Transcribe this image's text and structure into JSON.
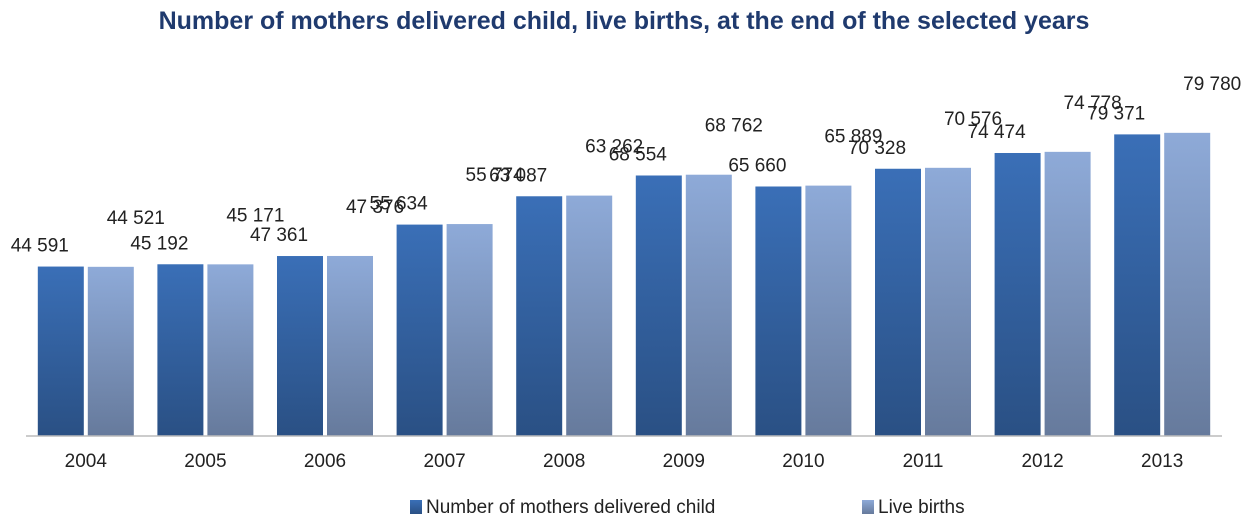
{
  "chart_data": {
    "type": "bar",
    "title": "Number of mothers delivered child, live births, at the end of the selected years",
    "categories": [
      "2004",
      "2005",
      "2006",
      "2007",
      "2008",
      "2009",
      "2010",
      "2011",
      "2012",
      "2013"
    ],
    "series": [
      {
        "name": "Number of mothers delivered child",
        "color": "#3a6fb7",
        "values": [
          44591,
          45192,
          47361,
          55634,
          63087,
          68554,
          65660,
          70328,
          74474,
          79371
        ],
        "value_labels": [
          "44 591",
          "45 192",
          "47 361",
          "55 634",
          "63 087",
          "68 554",
          "65 660",
          "70 328",
          "74 474",
          "79 371"
        ]
      },
      {
        "name": "Live births",
        "color": "#8eaad8",
        "values": [
          44521,
          45171,
          47376,
          55774,
          63262,
          68762,
          65889,
          70576,
          74778,
          79780
        ],
        "value_labels": [
          "44 521",
          "45 171",
          "47 376",
          "55 774",
          "63 262",
          "68 762",
          "65 889",
          "70 576",
          "74 778",
          "79 780"
        ]
      }
    ],
    "ylim": [
      0,
      90000
    ],
    "legend": "bottom"
  }
}
